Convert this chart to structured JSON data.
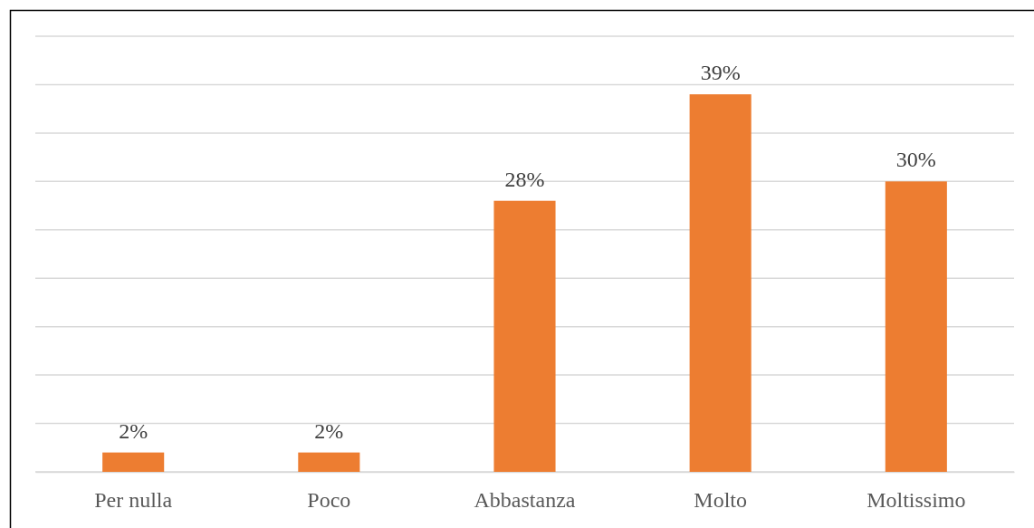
{
  "chart_data": {
    "type": "bar",
    "categories": [
      "Per nulla",
      "Poco",
      "Abbastanza",
      "Molto",
      "Moltissimo"
    ],
    "values": [
      2,
      2,
      28,
      39,
      30
    ],
    "value_labels": [
      "2%",
      "2%",
      "28%",
      "39%",
      "30%"
    ],
    "color": "#ed7d31",
    "ylim": [
      0,
      45
    ],
    "yticks": [
      {
        "value": 0,
        "label": null
      },
      {
        "value": 5,
        "label": null
      },
      {
        "value": 10,
        "label": null
      },
      {
        "value": 15,
        "label": null
      },
      {
        "value": 20,
        "label": null
      },
      {
        "value": 25,
        "label": null
      },
      {
        "value": 30,
        "label": null
      },
      {
        "value": 35,
        "label": null
      },
      {
        "value": 40,
        "label": null
      },
      {
        "value": 45,
        "label": null
      }
    ],
    "grid": "y",
    "tick_labels": "x"
  }
}
